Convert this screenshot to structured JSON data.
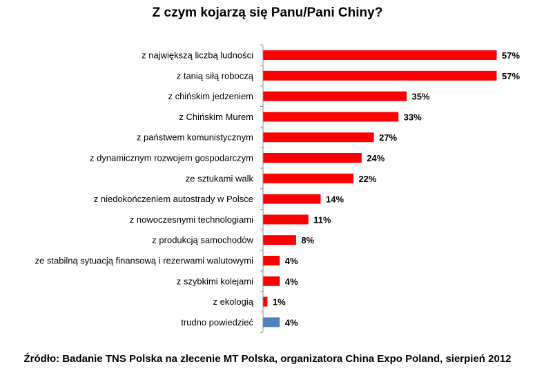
{
  "chart_data": {
    "type": "bar",
    "orientation": "horizontal",
    "title": "Z czym kojarzą się Panu/Pani Chiny?",
    "categories": [
      "z największą liczbą ludności",
      "z tanią siłą roboczą",
      "z chińskim jedzeniem",
      "z Chińskim Murem",
      "z państwem komunistycznym",
      "z dynamicznym rozwojem gospodarczym",
      "ze sztukami walk",
      "z niedokończeniem autostrady w Polsce",
      "z nowoczesnymi technologiami",
      "z produkcją samochodów",
      "ze stabilną sytuacją finansową i rezerwami walutowymi",
      "z szybkimi kolejami",
      "z ekologią",
      "trudno powiedzieć"
    ],
    "values": [
      57,
      57,
      35,
      33,
      27,
      24,
      22,
      14,
      11,
      8,
      4,
      4,
      1,
      4
    ],
    "value_labels": [
      "57%",
      "57%",
      "35%",
      "33%",
      "27%",
      "24%",
      "22%",
      "14%",
      "11%",
      "8%",
      "4%",
      "4%",
      "1%",
      "4%"
    ],
    "colors": [
      "#ff0000",
      "#ff0000",
      "#ff0000",
      "#ff0000",
      "#ff0000",
      "#ff0000",
      "#ff0000",
      "#ff0000",
      "#ff0000",
      "#ff0000",
      "#ff0000",
      "#ff0000",
      "#ff0000",
      "#4f81bd"
    ],
    "xlim": [
      0,
      57
    ],
    "grid": false,
    "legend": "none"
  },
  "source": "Źródło: Badanie TNS Polska na zlecenie MT Polska, organizatora China Expo Poland, sierpień 2012"
}
